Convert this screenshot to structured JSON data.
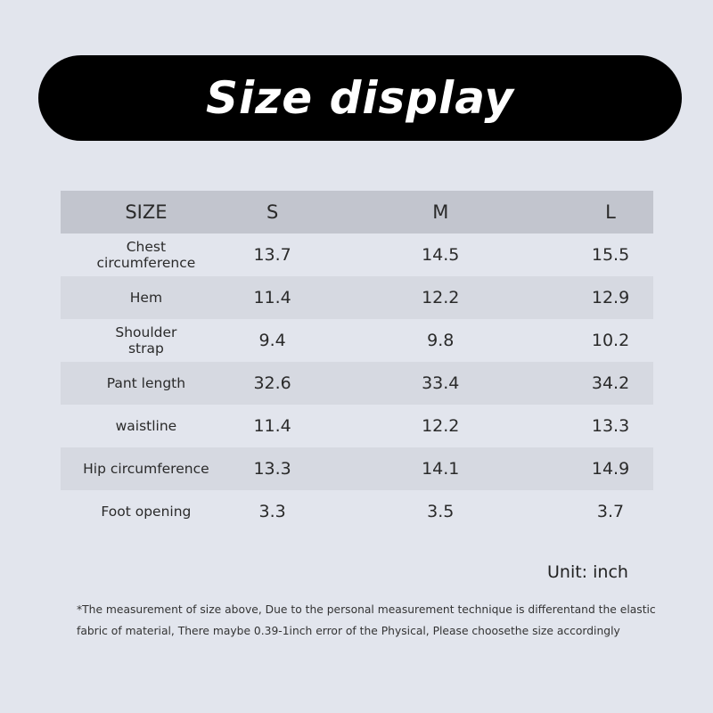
{
  "title": "Size display",
  "headers": [
    "SIZE",
    "S",
    "M",
    "L"
  ],
  "rows": [
    {
      "label": "Chest circumference",
      "values": [
        "13.7",
        "14.5",
        "15.5"
      ]
    },
    {
      "label": "Hem",
      "values": [
        "11.4",
        "12.2",
        "12.9"
      ]
    },
    {
      "label": "Shoulder strap",
      "values": [
        "9.4",
        "9.8",
        "10.2"
      ]
    },
    {
      "label": "Pant length",
      "values": [
        "32.6",
        "33.4",
        "34.2"
      ]
    },
    {
      "label": "waistline",
      "values": [
        "11.4",
        "12.2",
        "13.3"
      ]
    },
    {
      "label": "Hip circumference",
      "values": [
        "13.3",
        "14.1",
        "14.9"
      ]
    },
    {
      "label": "Foot opening",
      "values": [
        "3.3",
        "3.5",
        "3.7"
      ]
    }
  ],
  "unit": "Unit: inch",
  "note_line1": "*The measurement of size above, Due to the personal measurement technique is differentand the elastic",
  "note_line2": "fabric of material, There maybe 0.39-1inch error of the Physical, Please choosethe size accordingly"
}
